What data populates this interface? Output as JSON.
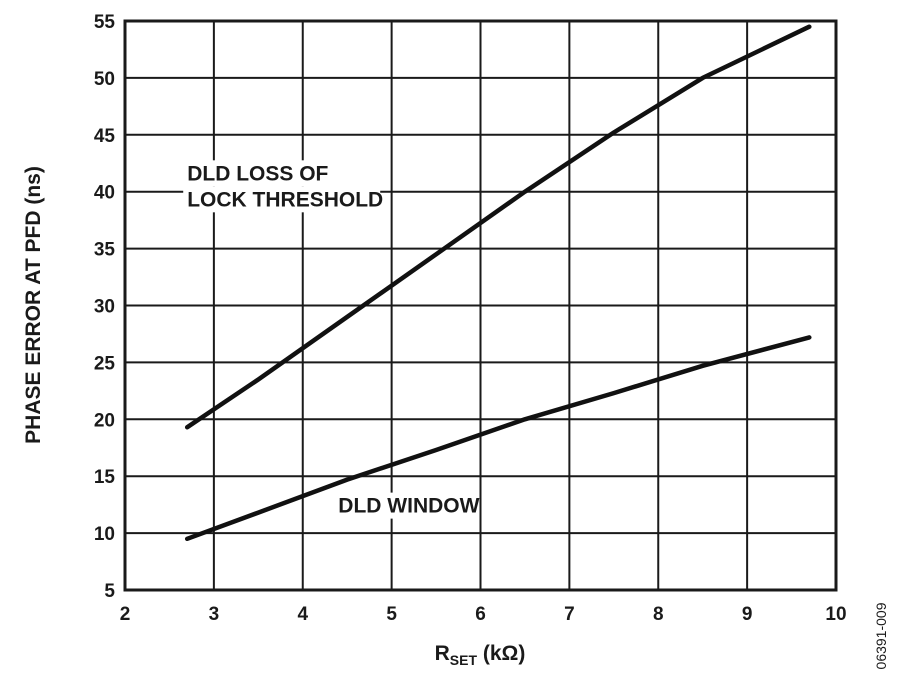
{
  "chart_data": {
    "type": "line",
    "xlabel_main": "R",
    "xlabel_sub": "SET",
    "xlabel_unit": " (kΩ)",
    "ylabel": "PHASE ERROR AT PFD (ns)",
    "xlim": [
      2,
      10
    ],
    "ylim": [
      5,
      55
    ],
    "xticks": [
      2,
      3,
      4,
      5,
      6,
      7,
      8,
      9,
      10
    ],
    "yticks": [
      5,
      10,
      15,
      20,
      25,
      30,
      35,
      40,
      45,
      50,
      55
    ],
    "grid": true,
    "series": [
      {
        "name": "",
        "x": [
          2.7,
          3.5,
          4.5,
          5.5,
          6.5,
          7.5,
          8.5,
          9.7
        ],
        "y": [
          19.3,
          23.5,
          29.0,
          34.5,
          40.0,
          45.2,
          50.0,
          54.5
        ]
      },
      {
        "name": "",
        "x": [
          2.7,
          3.5,
          4.5,
          5.5,
          6.5,
          7.5,
          8.5,
          9.7
        ],
        "y": [
          9.5,
          11.8,
          14.7,
          17.3,
          20.0,
          22.3,
          24.7,
          27.2
        ]
      }
    ],
    "annotations": [
      {
        "lines": [
          "DLD LOSS OF",
          "LOCK THRESHOLD"
        ],
        "x": 2.7,
        "y": 41
      },
      {
        "lines": [
          "DLD WINDOW"
        ],
        "x": 4.4,
        "y": 11.8
      }
    ],
    "figure_id": "06391-009"
  }
}
